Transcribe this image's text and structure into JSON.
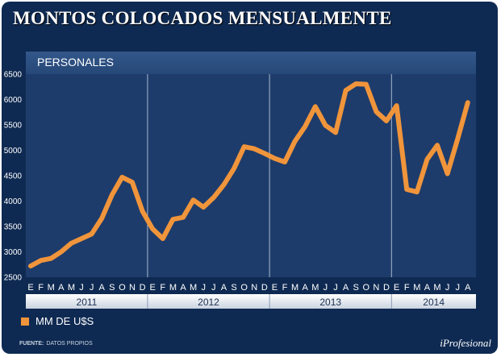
{
  "header": {
    "title": "MONTOS COLOCADOS MENSUALMENTE"
  },
  "footer": {
    "source_label": "FUENTE:",
    "source_text": "DATOS PROPIOS",
    "brand": "iProfesional"
  },
  "colors": {
    "background": "#0f2a52",
    "plot": "#1e3c6b",
    "line": "#f0953b",
    "grid": "#a8b8cf"
  },
  "chart_data": {
    "type": "line",
    "title": "PERSONALES",
    "xlabel": "",
    "ylabel": "",
    "ylim": [
      2500,
      6500
    ],
    "yticks": [
      2500,
      3000,
      3500,
      4000,
      4500,
      5000,
      5500,
      6000,
      6500
    ],
    "grid": "vertical lines at year boundaries",
    "legend_position": "bottom-left",
    "categories": [
      "E",
      "F",
      "M",
      "A",
      "M",
      "J",
      "J",
      "A",
      "S",
      "O",
      "N",
      "D",
      "E",
      "F",
      "M",
      "A",
      "M",
      "J",
      "J",
      "A",
      "S",
      "O",
      "N",
      "D",
      "E",
      "F",
      "M",
      "A",
      "M",
      "J",
      "J",
      "A",
      "S",
      "O",
      "N",
      "D",
      "E",
      "F",
      "M",
      "A",
      "M",
      "J",
      "J",
      "A"
    ],
    "years": [
      {
        "label": "2011",
        "months": 12
      },
      {
        "label": "2012",
        "months": 12
      },
      {
        "label": "2013",
        "months": 12
      },
      {
        "label": "2014",
        "months": 8
      }
    ],
    "series": [
      {
        "name": "MM DE U$S",
        "values": [
          2720,
          2830,
          2870,
          3000,
          3170,
          3260,
          3350,
          3660,
          4120,
          4470,
          4370,
          3800,
          3450,
          3260,
          3640,
          3680,
          4020,
          3880,
          4070,
          4320,
          4640,
          5070,
          5030,
          4940,
          4840,
          4770,
          5180,
          5470,
          5860,
          5490,
          5350,
          6180,
          6310,
          6300,
          5760,
          5580,
          5880,
          4230,
          4180,
          4820,
          5100,
          4540,
          5220,
          5940
        ]
      }
    ]
  }
}
